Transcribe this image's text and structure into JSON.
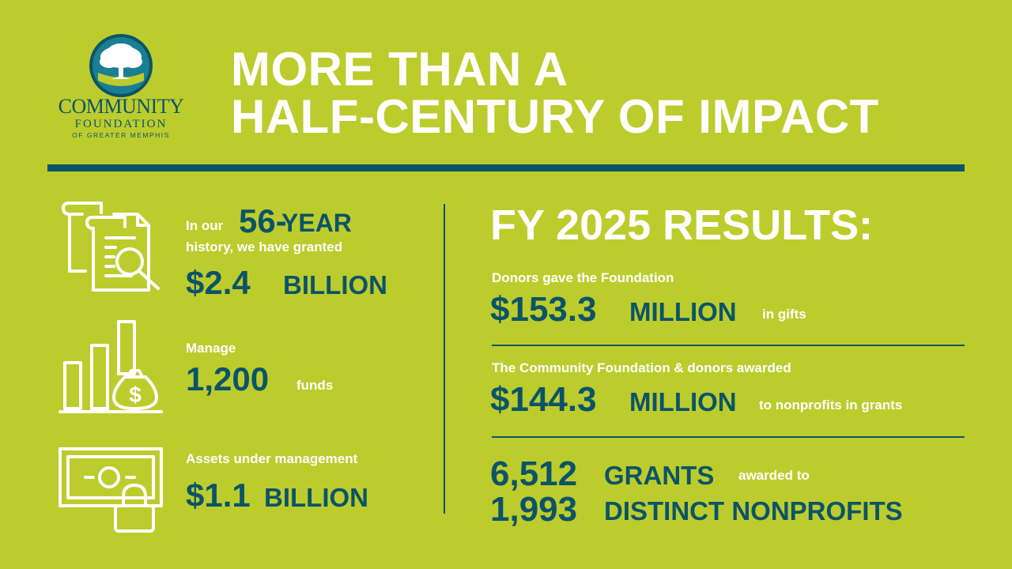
{
  "logo": {
    "line1": "COMMUNITY",
    "line2": "FOUNDATION",
    "line3": "OF GREATER MEMPHIS"
  },
  "title": {
    "line1": "MORE THAN A",
    "line2": "HALF-CENTURY OF IMPACT"
  },
  "history": {
    "prefix": "In our",
    "years": "56-",
    "years_word": "YEAR",
    "line2": "history, we have granted",
    "amount": "$2.4",
    "unit": "BILLION"
  },
  "funds": {
    "label": "Manage",
    "count": "1,200",
    "unit": "funds"
  },
  "assets": {
    "label": "Assets under management",
    "amount": "$1.1",
    "unit": "BILLION"
  },
  "results": {
    "heading": "FY 2025 RESULTS:",
    "gifts": {
      "label": "Donors gave the Foundation",
      "amount": "$153.3",
      "unit": "MILLION",
      "suffix": "in gifts"
    },
    "grants_awarded": {
      "label": "The Community Foundation & donors awarded",
      "amount": "$144.3",
      "unit": "MILLION",
      "suffix": "to nonprofits in grants"
    },
    "grants_count": {
      "count": "6,512",
      "unit": "GRANTS",
      "suffix": "awarded to",
      "nonprofits_count": "1,993",
      "nonprofits_unit": "DISTINCT NONPROFITS"
    }
  },
  "colors": {
    "background": "#bdcc2d",
    "teal": "#0b5468",
    "white": "#ffffff"
  },
  "icons": [
    "tree-seal-logo",
    "document-search-icon",
    "bar-chart-money-bag-icon",
    "banknote-lock-icon"
  ]
}
